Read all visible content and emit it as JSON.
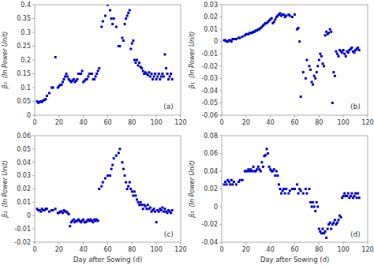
{
  "chart_data": [
    {
      "type": "scatter",
      "annotation": "(a)",
      "y_label": "β₀  (In Power Unit)",
      "color": "#0000CD",
      "marker": "square",
      "grid": false,
      "xlim": [
        0,
        120
      ],
      "xticks": [
        0,
        20,
        40,
        60,
        80,
        100,
        120
      ],
      "ylim": [
        0,
        0.4
      ],
      "yticks": [
        0,
        0.05,
        0.1,
        0.15,
        0.2,
        0.25,
        0.3,
        0.35,
        0.4
      ],
      "x": [
        2,
        3,
        4,
        5,
        6,
        7,
        8,
        9,
        10,
        12,
        14,
        15,
        17,
        19,
        20,
        21,
        22,
        23,
        24,
        25,
        26,
        27,
        28,
        29,
        30,
        31,
        32,
        33,
        34,
        35,
        36,
        37,
        38,
        39,
        40,
        41,
        42,
        43,
        44,
        45,
        46,
        47,
        48,
        49,
        50,
        51,
        52,
        53,
        55,
        56,
        58,
        60,
        62,
        63,
        64,
        65,
        67,
        69,
        70,
        72,
        73,
        74,
        75,
        76,
        77,
        78,
        79,
        80,
        81,
        82,
        83,
        84,
        85,
        86,
        87,
        88,
        89,
        90,
        91,
        92,
        93,
        94,
        95,
        96,
        97,
        98,
        99,
        100,
        101,
        102,
        103,
        104,
        105,
        106,
        107,
        108,
        109,
        110,
        111,
        112,
        113
      ],
      "values": [
        0.05,
        0.045,
        0.048,
        0.05,
        0.048,
        0.053,
        0.055,
        0.058,
        0.07,
        0.08,
        0.1,
        0.1,
        0.21,
        0.1,
        0.105,
        0.11,
        0.11,
        0.12,
        0.13,
        0.14,
        0.15,
        0.14,
        0.13,
        0.125,
        0.12,
        0.125,
        0.13,
        0.12,
        0.125,
        0.13,
        0.15,
        0.15,
        0.15,
        0.16,
        0.12,
        0.125,
        0.13,
        0.13,
        0.14,
        0.15,
        0.15,
        0.15,
        0.13,
        0.13,
        0.14,
        0.15,
        0.16,
        0.17,
        0.32,
        0.34,
        0.36,
        0.4,
        0.38,
        0.35,
        0.33,
        0.35,
        0.32,
        0.25,
        0.25,
        0.28,
        0.27,
        0.33,
        0.35,
        0.36,
        0.37,
        0.38,
        0.24,
        0.26,
        0.27,
        0.2,
        0.19,
        0.2,
        0.18,
        0.19,
        0.175,
        0.17,
        0.16,
        0.15,
        0.155,
        0.15,
        0.145,
        0.155,
        0.14,
        0.15,
        0.13,
        0.14,
        0.15,
        0.13,
        0.14,
        0.15,
        0.13,
        0.14,
        0.15,
        0.14,
        0.22,
        0.17,
        0.15,
        0.13,
        0.14,
        0.15,
        0.13
      ]
    },
    {
      "type": "scatter",
      "annotation": "(b)",
      "y_label": "β₁  (In Power Unit)",
      "color": "#0000CD",
      "marker": "square",
      "grid": false,
      "xlim": [
        0,
        120
      ],
      "xticks": [
        0,
        20,
        40,
        60,
        80,
        100,
        120
      ],
      "ylim": [
        -0.06,
        0.03
      ],
      "yticks": [
        -0.06,
        -0.05,
        -0.04,
        -0.03,
        -0.02,
        -0.01,
        0,
        0.01,
        0.02,
        0.03
      ],
      "x": [
        2,
        3,
        4,
        5,
        6,
        7,
        8,
        9,
        10,
        12,
        14,
        15,
        17,
        19,
        20,
        21,
        22,
        23,
        24,
        25,
        26,
        27,
        28,
        29,
        30,
        31,
        32,
        33,
        34,
        35,
        36,
        37,
        38,
        39,
        40,
        41,
        42,
        43,
        44,
        45,
        46,
        47,
        48,
        49,
        50,
        51,
        52,
        53,
        55,
        56,
        58,
        60,
        62,
        63,
        64,
        65,
        67,
        69,
        70,
        72,
        73,
        74,
        75,
        76,
        77,
        78,
        79,
        80,
        81,
        82,
        83,
        84,
        85,
        86,
        87,
        88,
        89,
        90,
        91,
        92,
        93,
        94,
        95,
        96,
        97,
        98,
        99,
        100,
        101,
        102,
        103,
        104,
        105,
        106,
        107,
        108,
        109,
        110,
        111,
        112,
        113
      ],
      "values": [
        0.001,
        0.001,
        0.0,
        0.0,
        0.001,
        0.001,
        0.0,
        0.002,
        0.002,
        0.002,
        0.003,
        0.003,
        0.004,
        0.005,
        0.006,
        0.006,
        0.006,
        0.007,
        0.007,
        0.007,
        0.008,
        0.008,
        0.009,
        0.009,
        0.01,
        0.01,
        0.011,
        0.012,
        0.013,
        0.014,
        0.015,
        0.015,
        0.016,
        0.017,
        0.018,
        0.019,
        0.015,
        0.016,
        0.018,
        0.02,
        0.021,
        0.022,
        0.023,
        0.021,
        0.022,
        0.022,
        0.02,
        0.021,
        0.022,
        0.021,
        0.02,
        0.022,
        0.01,
        0.011,
        0.0,
        -0.045,
        -0.025,
        -0.03,
        -0.015,
        -0.02,
        -0.023,
        -0.033,
        -0.035,
        -0.028,
        -0.03,
        -0.025,
        -0.02,
        -0.015,
        -0.01,
        -0.012,
        -0.018,
        -0.02,
        0.005,
        0.008,
        0.006,
        0.007,
        0.01,
        0.008,
        -0.05,
        -0.025,
        -0.028,
        -0.008,
        -0.01,
        -0.012,
        -0.007,
        -0.008,
        -0.009,
        -0.007,
        -0.01,
        -0.012,
        -0.008,
        -0.009,
        -0.007,
        -0.006,
        -0.005,
        -0.008,
        -0.009,
        -0.007,
        -0.006,
        -0.005,
        -0.007
      ]
    },
    {
      "type": "scatter",
      "annotation": "(c)",
      "y_label": "β₂  (In Power Unit)",
      "x_label": "Day after Sowing (d)",
      "color": "#0000CD",
      "marker": "square",
      "grid": false,
      "xlim": [
        0,
        120
      ],
      "xticks": [
        0,
        20,
        40,
        60,
        80,
        100,
        120
      ],
      "ylim": [
        -0.02,
        0.06
      ],
      "yticks": [
        -0.02,
        -0.01,
        0,
        0.01,
        0.02,
        0.03,
        0.04,
        0.05,
        0.06
      ],
      "x": [
        2,
        3,
        4,
        5,
        6,
        7,
        8,
        9,
        10,
        12,
        14,
        15,
        17,
        19,
        20,
        21,
        22,
        23,
        24,
        25,
        26,
        27,
        28,
        29,
        30,
        31,
        32,
        33,
        34,
        35,
        36,
        37,
        38,
        39,
        40,
        41,
        42,
        43,
        44,
        45,
        46,
        47,
        48,
        49,
        50,
        51,
        52,
        53,
        55,
        56,
        58,
        60,
        62,
        63,
        64,
        65,
        67,
        69,
        70,
        72,
        73,
        74,
        75,
        76,
        77,
        78,
        79,
        80,
        81,
        82,
        83,
        84,
        85,
        86,
        87,
        88,
        89,
        90,
        91,
        92,
        93,
        94,
        95,
        96,
        97,
        98,
        99,
        100,
        101,
        102,
        103,
        104,
        105,
        106,
        107,
        108,
        109,
        110,
        111,
        112,
        113
      ],
      "values": [
        0.005,
        0.004,
        0.004,
        0.003,
        0.005,
        0.004,
        0.004,
        0.005,
        0.005,
        0.003,
        0.004,
        0.004,
        0.005,
        0.002,
        0.002,
        0.003,
        0.003,
        0.002,
        0.004,
        0.003,
        0.003,
        0.002,
        0.001,
        -0.008,
        -0.005,
        -0.004,
        -0.003,
        -0.005,
        -0.004,
        -0.004,
        -0.003,
        -0.004,
        -0.005,
        -0.004,
        -0.003,
        -0.005,
        -0.005,
        -0.004,
        -0.003,
        -0.004,
        -0.003,
        -0.004,
        -0.005,
        -0.003,
        -0.004,
        -0.003,
        -0.004,
        0.02,
        0.022,
        0.025,
        0.028,
        0.03,
        0.03,
        0.035,
        0.038,
        0.043,
        0.045,
        0.047,
        0.05,
        0.04,
        0.035,
        0.03,
        0.025,
        0.02,
        0.022,
        0.025,
        0.02,
        0.018,
        0.015,
        0.018,
        0.015,
        0.012,
        0.01,
        0.008,
        0.01,
        0.008,
        0.005,
        0.008,
        0.007,
        0.005,
        0.008,
        0.005,
        0.006,
        0.003,
        0.004,
        0.005,
        0.003,
        -0.005,
        0.004,
        0.003,
        0.005,
        0.004,
        0.006,
        0.003,
        0.005,
        0.003,
        0.002,
        0.004,
        0.003,
        0.002,
        0.004
      ]
    },
    {
      "type": "scatter",
      "annotation": "(d)",
      "y_label": "β₃  (In Power Unit)",
      "x_label": "Day after Sowing (d)",
      "color": "#0000CD",
      "marker": "square",
      "grid": false,
      "xlim": [
        0,
        120
      ],
      "xticks": [
        0,
        20,
        40,
        60,
        80,
        100,
        120
      ],
      "ylim": [
        -0.04,
        0.08
      ],
      "yticks": [
        -0.04,
        -0.02,
        0,
        0.02,
        0.04,
        0.06,
        0.08
      ],
      "x": [
        2,
        3,
        4,
        5,
        6,
        7,
        8,
        9,
        10,
        12,
        14,
        15,
        17,
        19,
        20,
        21,
        22,
        23,
        24,
        25,
        26,
        27,
        28,
        29,
        30,
        31,
        32,
        33,
        34,
        35,
        36,
        37,
        38,
        39,
        40,
        41,
        42,
        43,
        44,
        45,
        46,
        47,
        48,
        49,
        50,
        51,
        52,
        53,
        55,
        56,
        58,
        60,
        62,
        63,
        64,
        65,
        67,
        69,
        70,
        72,
        73,
        74,
        75,
        76,
        77,
        78,
        79,
        80,
        81,
        82,
        83,
        84,
        85,
        86,
        87,
        88,
        89,
        90,
        91,
        92,
        93,
        94,
        95,
        96,
        97,
        98,
        99,
        100,
        101,
        102,
        103,
        104,
        105,
        106,
        107,
        108,
        109,
        110,
        111,
        112,
        113
      ],
      "values": [
        0.025,
        0.028,
        0.025,
        0.03,
        0.028,
        0.025,
        0.03,
        0.025,
        0.028,
        0.025,
        0.028,
        0.03,
        0.03,
        0.04,
        0.04,
        0.04,
        0.042,
        0.04,
        0.042,
        0.04,
        0.045,
        0.04,
        0.04,
        0.042,
        0.045,
        0.042,
        0.04,
        0.05,
        0.045,
        0.057,
        0.058,
        0.065,
        0.06,
        0.045,
        0.042,
        0.04,
        0.04,
        0.042,
        0.035,
        0.04,
        0.035,
        0.025,
        0.02,
        0.015,
        0.018,
        0.02,
        0.015,
        0.02,
        0.015,
        0.018,
        0.02,
        0.02,
        0.025,
        0.015,
        0.02,
        0.018,
        0.015,
        0.02,
        0.015,
        0.02,
        0.005,
        0.0,
        0.005,
        0.0,
        -0.005,
        0.005,
        0.0,
        -0.025,
        -0.028,
        -0.03,
        -0.025,
        -0.03,
        -0.028,
        -0.035,
        -0.025,
        -0.02,
        -0.018,
        -0.025,
        -0.02,
        -0.018,
        -0.015,
        -0.02,
        -0.018,
        -0.015,
        -0.01,
        -0.012,
        0.01,
        0.012,
        0.015,
        0.012,
        0.012,
        0.015,
        0.01,
        0.012,
        0.015,
        0.01,
        0.012,
        0.015,
        0.01,
        0.015,
        0.01
      ]
    }
  ]
}
